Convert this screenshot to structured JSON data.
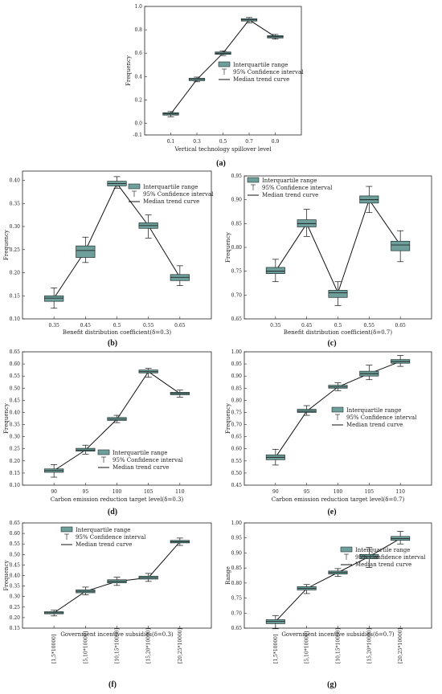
{
  "colors": {
    "box_fill": "#6f9f9b",
    "box_stroke": "#1f2f2f",
    "line": "#111111",
    "axis": "#222222"
  },
  "legend": {
    "iqr": "Interquartile range",
    "ci": "95% Confidence interval",
    "median": "Median trend curve"
  },
  "chart_data": [
    {
      "id": "a",
      "panel_label": "(a)",
      "type": "box",
      "xlabel": "Vertical technology spillover level",
      "ylabel": "Frequency",
      "categories": [
        "0.1",
        "0.3",
        "0.5",
        "0.7",
        "0.9"
      ],
      "median": [
        0.08,
        0.375,
        0.6,
        0.885,
        0.74
      ],
      "q1": [
        0.07,
        0.365,
        0.59,
        0.875,
        0.73
      ],
      "q3": [
        0.09,
        0.385,
        0.61,
        0.895,
        0.75
      ],
      "ci_low": [
        0.055,
        0.355,
        0.58,
        0.86,
        0.72
      ],
      "ci_high": [
        0.1,
        0.395,
        0.62,
        0.905,
        0.76
      ],
      "ylim": [
        -0.1,
        1.0
      ],
      "yticks": [
        "-0.1",
        "0.0",
        "0.2",
        "0.4",
        "0.6",
        "0.8",
        "1.0"
      ],
      "legend_position": "center-right"
    },
    {
      "id": "b",
      "panel_label": "(b)",
      "type": "box",
      "xlabel": "Benefit distribution coefficient(δ=0.3)",
      "ylabel": "Frequency",
      "categories": [
        "0.35",
        "0.45",
        "0.5",
        "0.55",
        "0.65"
      ],
      "median": [
        0.145,
        0.248,
        0.393,
        0.302,
        0.19
      ],
      "q1": [
        0.138,
        0.233,
        0.388,
        0.296,
        0.183
      ],
      "q3": [
        0.15,
        0.258,
        0.398,
        0.308,
        0.196
      ],
      "ci_low": [
        0.123,
        0.222,
        0.383,
        0.275,
        0.172
      ],
      "ci_high": [
        0.167,
        0.277,
        0.408,
        0.325,
        0.215
      ],
      "ylim": [
        0.1,
        0.42
      ],
      "yticks": [
        "0.10",
        "0.15",
        "0.20",
        "0.25",
        "0.30",
        "0.35",
        "0.40"
      ],
      "legend_position": "top-right"
    },
    {
      "id": "c",
      "panel_label": "(c)",
      "type": "box",
      "xlabel": "Benefit distribution coefficient(δ=0.7)",
      "ylabel": "Frequency",
      "categories": [
        "0.35",
        "0.45",
        "0.5",
        "0.55",
        "0.65"
      ],
      "median": [
        0.75,
        0.85,
        0.705,
        0.9,
        0.805
      ],
      "q1": [
        0.745,
        0.843,
        0.695,
        0.893,
        0.793
      ],
      "q3": [
        0.758,
        0.858,
        0.71,
        0.908,
        0.813
      ],
      "ci_low": [
        0.728,
        0.823,
        0.678,
        0.873,
        0.77
      ],
      "ci_high": [
        0.775,
        0.88,
        0.728,
        0.928,
        0.835
      ],
      "ylim": [
        0.65,
        0.95
      ],
      "yticks": [
        "0.65",
        "0.70",
        "0.75",
        "0.80",
        "0.85",
        "0.90",
        "0.95"
      ],
      "legend_position": "top-left"
    },
    {
      "id": "d",
      "panel_label": "(d)",
      "type": "box",
      "xlabel": "Carbon emission reduction target level(δ=0.3)",
      "ylabel": "Frequency",
      "categories": [
        "90",
        "95",
        "100",
        "105",
        "110"
      ],
      "median": [
        0.16,
        0.245,
        0.372,
        0.568,
        0.478
      ],
      "q1": [
        0.153,
        0.24,
        0.367,
        0.563,
        0.473
      ],
      "q3": [
        0.167,
        0.252,
        0.379,
        0.575,
        0.483
      ],
      "ci_low": [
        0.133,
        0.228,
        0.358,
        0.545,
        0.463
      ],
      "ci_high": [
        0.185,
        0.265,
        0.388,
        0.582,
        0.492
      ],
      "ylim": [
        0.1,
        0.65
      ],
      "yticks": [
        "0.10",
        "0.15",
        "0.20",
        "0.25",
        "0.30",
        "0.35",
        "0.40",
        "0.45",
        "0.50",
        "0.55",
        "0.60",
        "0.65"
      ],
      "legend_position": "bottom-right"
    },
    {
      "id": "e",
      "panel_label": "(e)",
      "type": "box",
      "xlabel": "Carbon emission reduction target level(δ=0.7)",
      "ylabel": "Frequency",
      "categories": [
        "90",
        "95",
        "100",
        "105",
        "110"
      ],
      "median": [
        0.565,
        0.755,
        0.855,
        0.91,
        0.96
      ],
      "q1": [
        0.555,
        0.75,
        0.85,
        0.9,
        0.953
      ],
      "q3": [
        0.575,
        0.763,
        0.862,
        0.92,
        0.968
      ],
      "ci_low": [
        0.533,
        0.738,
        0.84,
        0.885,
        0.94
      ],
      "ci_high": [
        0.598,
        0.778,
        0.872,
        0.945,
        0.985
      ],
      "ylim": [
        0.45,
        1.0
      ],
      "yticks": [
        "0.45",
        "0.50",
        "0.55",
        "0.60",
        "0.65",
        "0.70",
        "0.75",
        "0.80",
        "0.85",
        "0.90",
        "0.95",
        "1.00"
      ],
      "legend_position": "center-right"
    },
    {
      "id": "f",
      "panel_label": "(f)",
      "type": "box",
      "xlabel": "Government incentive subsidies(δ=0.3)",
      "ylabel": "Frequency",
      "categories": [
        "[1,5*10000]",
        "[5,10*10000]",
        "[10,15*10000]",
        "[15,20*10000]",
        "[20,25*10000]"
      ],
      "median": [
        0.223,
        0.325,
        0.372,
        0.39,
        0.56
      ],
      "q1": [
        0.218,
        0.318,
        0.365,
        0.383,
        0.555
      ],
      "q3": [
        0.228,
        0.332,
        0.38,
        0.397,
        0.567
      ],
      "ci_low": [
        0.208,
        0.308,
        0.353,
        0.372,
        0.543
      ],
      "ci_high": [
        0.235,
        0.345,
        0.392,
        0.41,
        0.578
      ],
      "ylim": [
        0.15,
        0.65
      ],
      "yticks": [
        "0.15",
        "0.20",
        "0.25",
        "0.30",
        "0.35",
        "0.40",
        "0.45",
        "0.50",
        "0.55",
        "0.60",
        "0.65"
      ],
      "legend_position": "top-left"
    },
    {
      "id": "g",
      "panel_label": "(g)",
      "type": "box",
      "xlabel": "Government incentive subsidies(δ=0.7)",
      "ylabel": "Range",
      "categories": [
        "[1,5*10000]",
        "[5,10*10000]",
        "[10,15*10000]",
        "[15,20*10000]",
        "[20,25*10000]"
      ],
      "median": [
        0.672,
        0.782,
        0.835,
        0.888,
        0.948
      ],
      "q1": [
        0.665,
        0.777,
        0.83,
        0.881,
        0.942
      ],
      "q3": [
        0.678,
        0.788,
        0.84,
        0.895,
        0.955
      ],
      "ci_low": [
        0.648,
        0.765,
        0.822,
        0.852,
        0.93
      ],
      "ci_high": [
        0.692,
        0.795,
        0.848,
        0.918,
        0.972
      ],
      "ylim": [
        0.65,
        1.0
      ],
      "yticks": [
        "0.65",
        "0.70",
        "0.75",
        "0.80",
        "0.85",
        "0.90",
        "0.95",
        "1.00"
      ],
      "legend_position": "center-right"
    }
  ]
}
